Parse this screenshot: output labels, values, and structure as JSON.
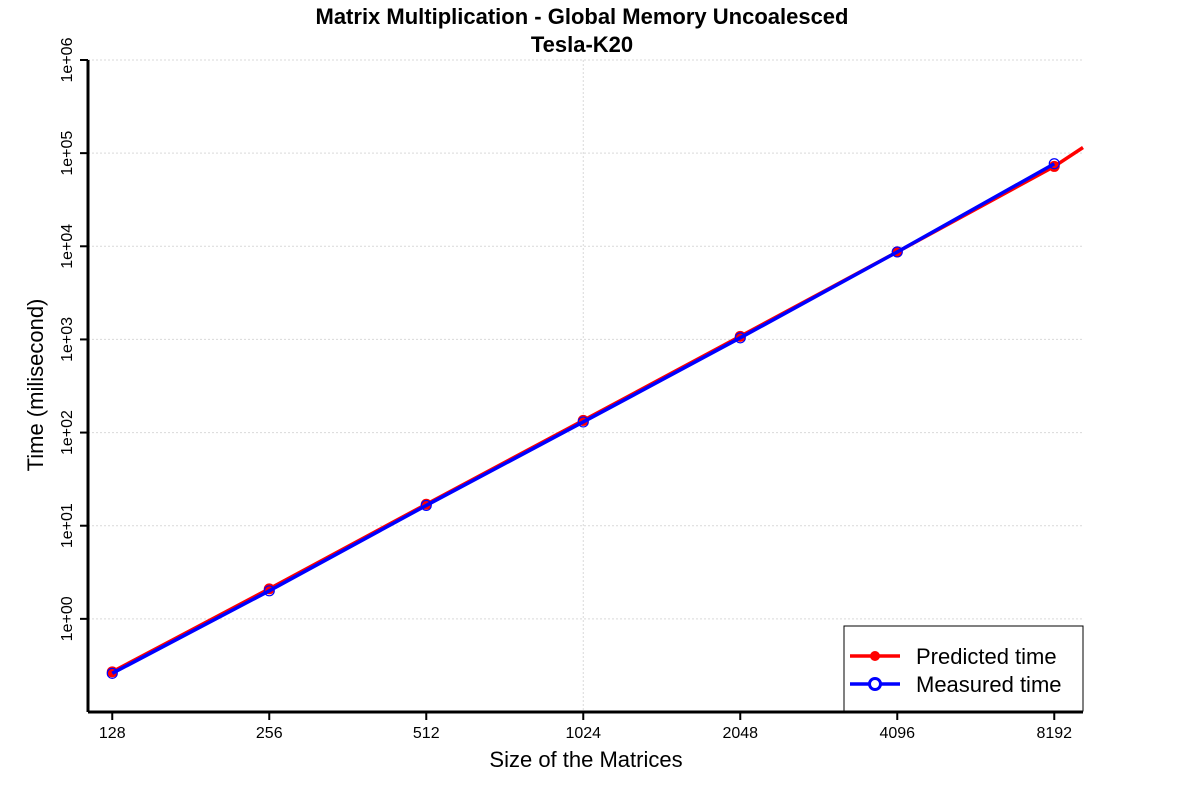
{
  "chart_data": {
    "type": "line",
    "title": "Matrix Multiplication - Global Memory Uncoalesced",
    "subtitle": "Tesla-K20",
    "xlabel": "Size of the Matrices",
    "ylabel": "Time (milisecond)",
    "x_scale": "log2",
    "y_scale": "log10",
    "x_ticks": [
      128,
      256,
      512,
      1024,
      2048,
      4096,
      8192
    ],
    "x_tick_labels": [
      "128",
      "256",
      "512",
      "1024",
      "2048",
      "4096",
      "8192"
    ],
    "y_ticks": [
      1,
      10,
      100,
      1000,
      10000,
      100000,
      1000000
    ],
    "y_tick_labels": [
      "1e+00",
      "1e+01",
      "1e+02",
      "1e+03",
      "1e+04",
      "1e+05",
      "1e+06"
    ],
    "xlim": [
      115,
      9300
    ],
    "ylim": [
      0.1,
      1000000
    ],
    "grid": true,
    "legend_position": "bottom-right",
    "series": [
      {
        "name": "Predicted time",
        "color": "#ff0000",
        "marker": "filled-circle",
        "x": [
          128,
          256,
          512,
          1024,
          2048,
          4096,
          8192
        ],
        "y": [
          0.27,
          2.1,
          17,
          135,
          1080,
          8700,
          72000
        ],
        "line_extends_to": {
          "x": 9300,
          "y": 115000
        }
      },
      {
        "name": "Measured time",
        "color": "#0000ff",
        "marker": "open-circle",
        "x": [
          128,
          256,
          512,
          1024,
          2048,
          4096,
          8192
        ],
        "y": [
          0.26,
          2.0,
          16.5,
          130,
          1040,
          8700,
          77000
        ]
      }
    ]
  }
}
